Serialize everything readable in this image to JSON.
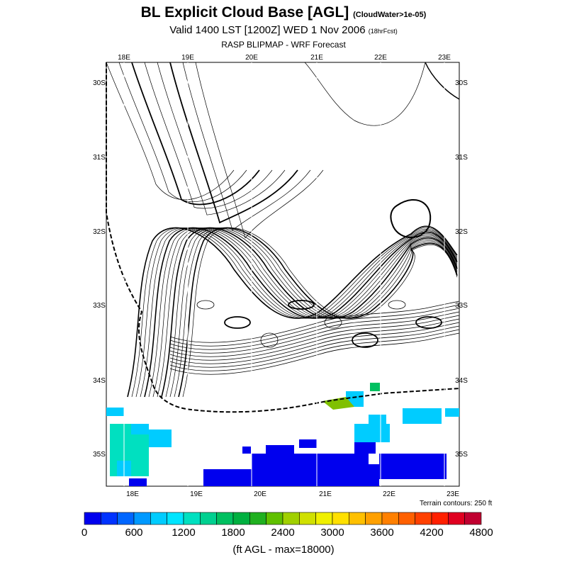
{
  "header": {
    "title": "BL Explicit Cloud Base [AGL]",
    "title_note": "(CloudWater>1e-05)",
    "valid": "Valid 1400 LST [1200Z] WED 1 Nov 2006",
    "valid_note": "(18hrFcst)",
    "subtitle": "RASP BLIPMAP - WRF Forecast"
  },
  "map": {
    "lon_labels": [
      "18E",
      "19E",
      "20E",
      "21E",
      "22E",
      "23E"
    ],
    "lat_labels": [
      "30S",
      "31S",
      "32S",
      "33S",
      "34S",
      "35S"
    ],
    "terrain_note": "Terrain contours: 250 ft",
    "cloud_color_low": "#0000ee",
    "cloud_color_mid": "#00ccff",
    "cloud_color_teal": "#00e0c0"
  },
  "colorbar": {
    "colors": [
      "#0000ee",
      "#0033ff",
      "#0066ff",
      "#0099ff",
      "#00ccff",
      "#00e5ff",
      "#00e0c0",
      "#00d090",
      "#00c060",
      "#00b040",
      "#20b020",
      "#60c000",
      "#a0d000",
      "#d0e000",
      "#f0f000",
      "#ffe000",
      "#ffc000",
      "#ffa000",
      "#ff8000",
      "#ff6000",
      "#ff4000",
      "#ff2000",
      "#e00020",
      "#c00030"
    ],
    "labels": [
      "0",
      "600",
      "1200",
      "1800",
      "2400",
      "3000",
      "3600",
      "4200",
      "4800"
    ],
    "units": "(ft AGL - max=18000)"
  }
}
